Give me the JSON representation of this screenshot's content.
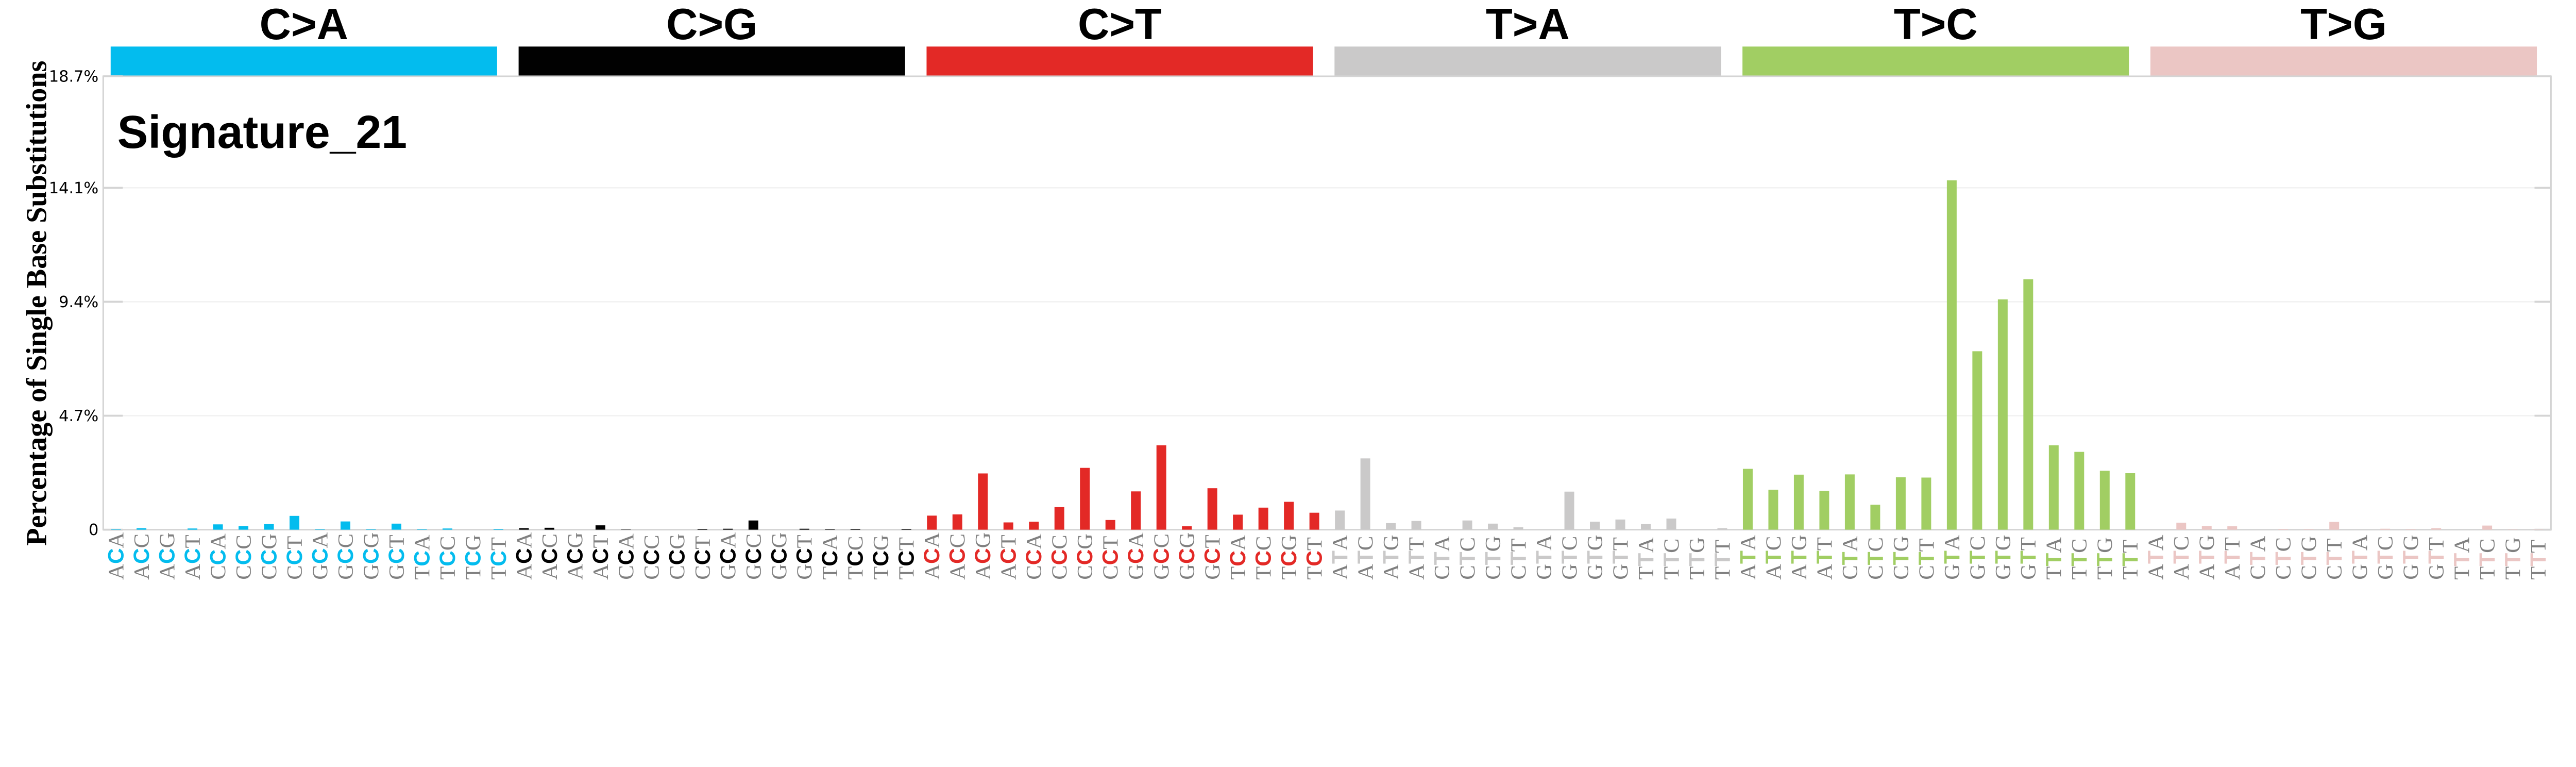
{
  "chart_data": {
    "type": "bar",
    "title": "Signature_21",
    "ylabel": "Percentage of Single Base Substitutions",
    "xlabel": "",
    "ylim": [
      0,
      18.7
    ],
    "yticks": [
      "0",
      "4.7%",
      "9.4%",
      "14.1%",
      "18.7%"
    ],
    "ytick_values": [
      0,
      4.7,
      9.4,
      14.1,
      18.7
    ],
    "grid": true,
    "groups": [
      {
        "name": "C>A",
        "color": "#03BCEE",
        "contexts": [
          "ACA",
          "ACC",
          "ACG",
          "ACT",
          "CCA",
          "CCC",
          "CCG",
          "CCT",
          "GCA",
          "GCC",
          "GCG",
          "GCT",
          "TCA",
          "TCC",
          "TCG",
          "TCT"
        ],
        "values": [
          0.02,
          0.06,
          0.0,
          0.05,
          0.22,
          0.15,
          0.23,
          0.57,
          0.02,
          0.34,
          0.02,
          0.25,
          0.02,
          0.05,
          0.0,
          0.03
        ]
      },
      {
        "name": "C>G",
        "color": "#010101",
        "contexts": [
          "ACA",
          "ACC",
          "ACG",
          "ACT",
          "CCA",
          "CCC",
          "CCG",
          "CCT",
          "GCA",
          "GCC",
          "GCG",
          "GCT",
          "TCA",
          "TCC",
          "TCG",
          "TCT"
        ],
        "values": [
          0.06,
          0.08,
          0.0,
          0.18,
          0.01,
          0.0,
          0.0,
          0.03,
          0.04,
          0.38,
          0.0,
          0.04,
          0.02,
          0.03,
          0.0,
          0.03
        ]
      },
      {
        "name": "C>T",
        "color": "#E32926",
        "contexts": [
          "ACA",
          "ACC",
          "ACG",
          "ACT",
          "CCA",
          "CCC",
          "CCG",
          "CCT",
          "GCA",
          "GCC",
          "GCG",
          "GCT",
          "TCA",
          "TCC",
          "TCG",
          "TCT"
        ],
        "values": [
          0.58,
          0.63,
          2.32,
          0.3,
          0.33,
          0.93,
          2.55,
          0.4,
          1.58,
          3.48,
          0.14,
          1.71,
          0.62,
          0.91,
          1.15,
          0.7
        ]
      },
      {
        "name": "T>A",
        "color": "#CAC9C9",
        "contexts": [
          "ATA",
          "ATC",
          "ATG",
          "ATT",
          "CTA",
          "CTC",
          "CTG",
          "CTT",
          "GTA",
          "GTC",
          "GTG",
          "GTT",
          "TTA",
          "TTC",
          "TTG",
          "TTT"
        ],
        "values": [
          0.79,
          2.94,
          0.27,
          0.36,
          0.0,
          0.38,
          0.25,
          0.1,
          0.0,
          1.57,
          0.33,
          0.42,
          0.23,
          0.46,
          0.0,
          0.06
        ]
      },
      {
        "name": "T>C",
        "color": "#A1CE63",
        "contexts": [
          "ATA",
          "ATC",
          "ATG",
          "ATT",
          "CTA",
          "CTC",
          "CTG",
          "CTT",
          "GTA",
          "GTC",
          "GTG",
          "GTT",
          "TTA",
          "TTC",
          "TTG",
          "TTT"
        ],
        "values": [
          2.51,
          1.65,
          2.27,
          1.6,
          2.28,
          1.03,
          2.16,
          2.15,
          14.41,
          7.36,
          9.5,
          10.33,
          3.48,
          3.21,
          2.43,
          2.33
        ]
      },
      {
        "name": "T>G",
        "color": "#EBC6C4",
        "contexts": [
          "ATA",
          "ATC",
          "ATG",
          "ATT",
          "CTA",
          "CTC",
          "CTG",
          "CTT",
          "GTA",
          "GTC",
          "GTG",
          "GTT",
          "TTA",
          "TTC",
          "TTG",
          "TTT"
        ],
        "values": [
          0.0,
          0.29,
          0.15,
          0.14,
          0.0,
          0.03,
          0.02,
          0.32,
          0.0,
          0.04,
          0.02,
          0.06,
          0.0,
          0.17,
          0.01,
          0.01
        ]
      }
    ]
  }
}
